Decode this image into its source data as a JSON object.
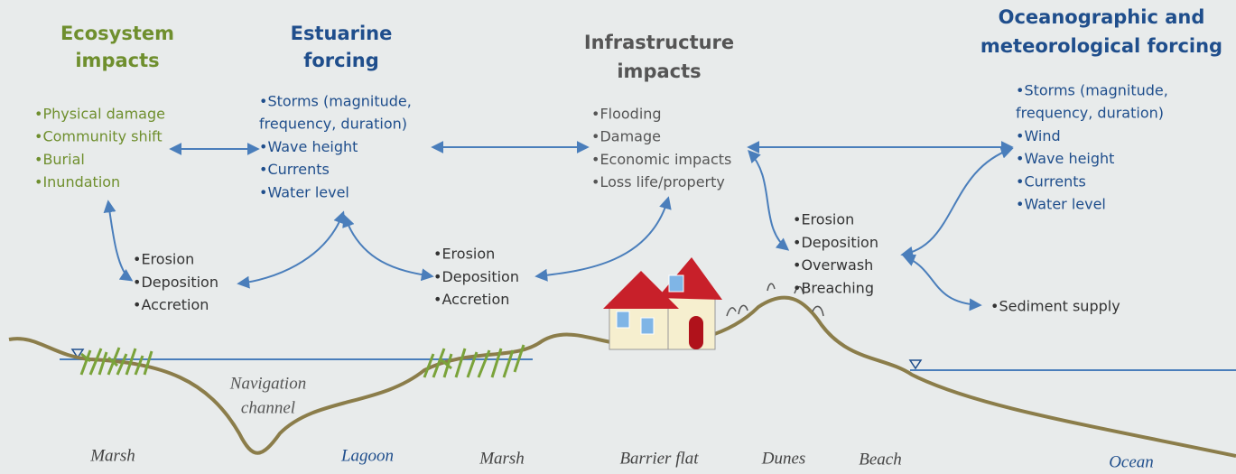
{
  "groups": [
    {
      "title_lines": [
        "Ecosystem",
        "impacts"
      ],
      "items": [
        "•Physical damage",
        "•Community shift",
        "•Burial",
        "•Inundation"
      ]
    },
    {
      "title_lines": [
        "Estuarine",
        "forcing"
      ],
      "items": [
        "•Storms (magnitude,",
        "frequency, duration)",
        "•Wave height",
        "•Currents",
        "•Water level"
      ]
    },
    {
      "title_lines": [
        "Infrastructure",
        "impacts"
      ],
      "items": [
        "•Flooding",
        "•Damage",
        "•Economic impacts",
        "•Loss life/property"
      ]
    },
    {
      "title_lines": [
        "Oceanographic and",
        "meteorological forcing"
      ],
      "items": [
        "•Storms (magnitude,",
        "frequency, duration)",
        "•Wind",
        "•Wave height",
        "•Currents",
        "•Water level"
      ]
    }
  ],
  "processes": [
    {
      "items": [
        "•Erosion",
        "•Deposition",
        "•Accretion"
      ]
    },
    {
      "items": [
        "•Erosion",
        "•Deposition",
        "•Accretion"
      ]
    },
    {
      "items": [
        "•Erosion",
        "•Deposition",
        "•Overwash",
        "•Breaching"
      ]
    },
    {
      "items": [
        "•Sediment supply"
      ]
    }
  ],
  "channel_label": [
    "Navigation",
    "channel"
  ],
  "zones": [
    "Marsh",
    "Lagoon",
    "Marsh",
    "Barrier flat",
    "Dunes",
    "Beach",
    "Ocean"
  ]
}
